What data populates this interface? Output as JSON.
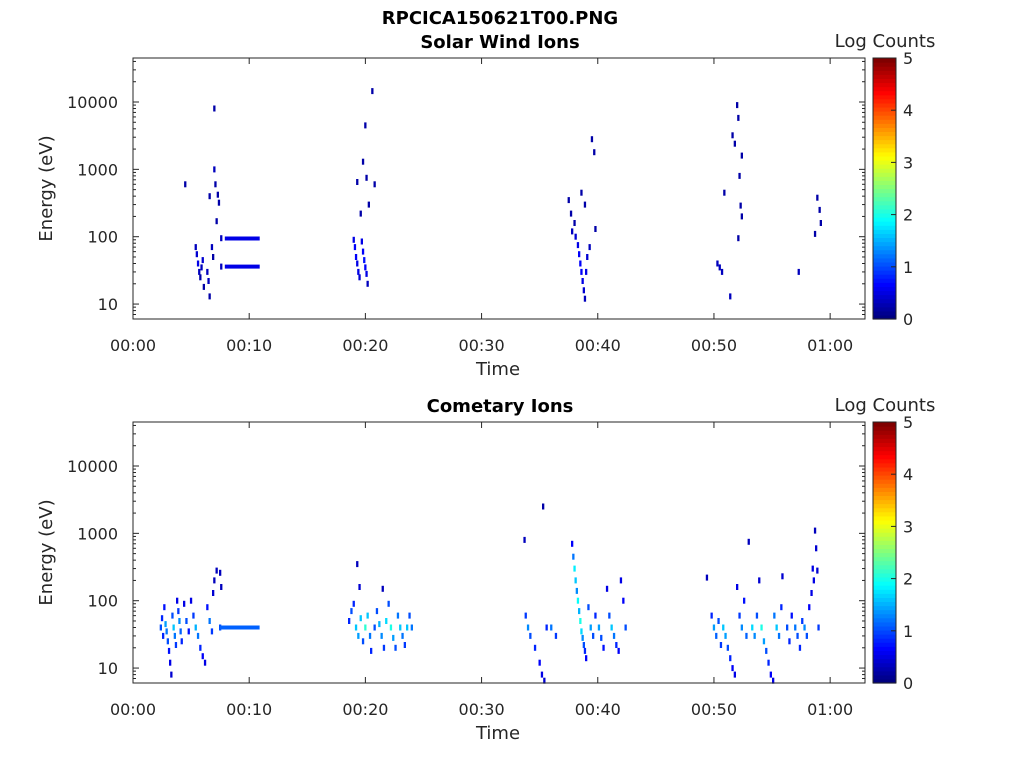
{
  "figure_title": "RPCICA150621T00.PNG",
  "chart_data": [
    {
      "type": "heatmap",
      "title": "Solar Wind Ions",
      "xlabel": "Time",
      "ylabel": "Energy (eV)",
      "x_unit": "minutes after 00:00",
      "xlim": [
        0,
        63
      ],
      "ylim": [
        6,
        45000
      ],
      "y_scale": "log",
      "xticks": [
        "00:00",
        "00:10",
        "00:20",
        "00:30",
        "00:40",
        "00:50",
        "01:00"
      ],
      "yticks": [
        "10",
        "100",
        "1000",
        "10000"
      ],
      "colorbar": {
        "label": "Log Counts",
        "ticks": [
          "0",
          "1",
          "2",
          "3",
          "4",
          "5"
        ],
        "range": [
          0,
          5
        ],
        "colormap": "jet"
      },
      "cells": [
        [
          4.5,
          600,
          0.2
        ],
        [
          5.4,
          70,
          0.3
        ],
        [
          5.5,
          55,
          0.4
        ],
        [
          5.6,
          40,
          0.5
        ],
        [
          5.7,
          30,
          0.3
        ],
        [
          5.8,
          25,
          0.2
        ],
        [
          5.9,
          35,
          0.3
        ],
        [
          6.0,
          45,
          0.4
        ],
        [
          6.1,
          18,
          0.2
        ],
        [
          6.4,
          30,
          0.3
        ],
        [
          6.5,
          22,
          0.3
        ],
        [
          6.6,
          13,
          0.2
        ],
        [
          6.6,
          400,
          0.2
        ],
        [
          6.8,
          70,
          0.3
        ],
        [
          6.9,
          50,
          0.2
        ],
        [
          7.0,
          1000,
          0.3
        ],
        [
          7.0,
          8000,
          0.2
        ],
        [
          7.1,
          600,
          0.2
        ],
        [
          7.2,
          170,
          0.2
        ],
        [
          7.3,
          420,
          0.2
        ],
        [
          7.4,
          320,
          0.2
        ],
        [
          7.6,
          95,
          0.3
        ],
        [
          7.6,
          36,
          0.3
        ],
        [
          19.0,
          90,
          0.5
        ],
        [
          19.1,
          70,
          0.6
        ],
        [
          19.2,
          50,
          0.6
        ],
        [
          19.3,
          40,
          0.5
        ],
        [
          19.4,
          30,
          0.5
        ],
        [
          19.5,
          25,
          0.4
        ],
        [
          19.7,
          85,
          0.5
        ],
        [
          19.8,
          60,
          0.6
        ],
        [
          19.9,
          45,
          0.7
        ],
        [
          20.0,
          35,
          0.6
        ],
        [
          20.1,
          28,
          0.5
        ],
        [
          20.2,
          20,
          0.3
        ],
        [
          19.3,
          650,
          0.2
        ],
        [
          19.6,
          220,
          0.2
        ],
        [
          19.8,
          1300,
          0.2
        ],
        [
          20.0,
          4500,
          0.2
        ],
        [
          20.1,
          750,
          0.2
        ],
        [
          20.3,
          300,
          0.2
        ],
        [
          20.6,
          14500,
          0.2
        ],
        [
          20.8,
          600,
          0.2
        ],
        [
          37.5,
          350,
          0.2
        ],
        [
          37.7,
          220,
          0.2
        ],
        [
          37.8,
          120,
          0.3
        ],
        [
          38.0,
          160,
          0.2
        ],
        [
          38.1,
          100,
          0.4
        ],
        [
          38.3,
          75,
          0.5
        ],
        [
          38.4,
          55,
          0.6
        ],
        [
          38.5,
          40,
          0.6
        ],
        [
          38.6,
          30,
          0.6
        ],
        [
          38.7,
          22,
          0.5
        ],
        [
          38.8,
          16,
          0.4
        ],
        [
          38.9,
          12,
          0.3
        ],
        [
          39.0,
          30,
          0.5
        ],
        [
          39.1,
          50,
          0.4
        ],
        [
          38.6,
          450,
          0.2
        ],
        [
          38.9,
          300,
          0.2
        ],
        [
          39.3,
          70,
          0.3
        ],
        [
          39.5,
          2800,
          0.2
        ],
        [
          39.7,
          1800,
          0.2
        ],
        [
          39.8,
          130,
          0.2
        ],
        [
          50.3,
          40,
          0.3
        ],
        [
          50.5,
          35,
          0.3
        ],
        [
          50.7,
          30,
          0.3
        ],
        [
          50.9,
          450,
          0.2
        ],
        [
          51.4,
          13,
          0.3
        ],
        [
          51.6,
          3200,
          0.2
        ],
        [
          51.8,
          2400,
          0.2
        ],
        [
          52.0,
          9000,
          0.2
        ],
        [
          52.1,
          5800,
          0.2
        ],
        [
          52.2,
          800,
          0.2
        ],
        [
          52.4,
          1600,
          0.2
        ],
        [
          52.1,
          95,
          0.2
        ],
        [
          52.3,
          290,
          0.2
        ],
        [
          52.4,
          200,
          0.2
        ],
        [
          57.3,
          30,
          0.3
        ],
        [
          58.7,
          110,
          0.2
        ],
        [
          58.9,
          380,
          0.2
        ],
        [
          59.1,
          250,
          0.2
        ],
        [
          59.2,
          160,
          0.2
        ]
      ],
      "bands": [
        [
          7.9,
          10.9,
          94,
          0.5
        ],
        [
          7.9,
          10.9,
          36,
          0.5
        ]
      ]
    },
    {
      "type": "heatmap",
      "title": "Cometary Ions",
      "xlabel": "Time",
      "ylabel": "Energy (eV)",
      "x_unit": "minutes after 00:00",
      "xlim": [
        0,
        63
      ],
      "ylim": [
        6,
        45000
      ],
      "y_scale": "log",
      "xticks": [
        "00:00",
        "00:10",
        "00:20",
        "00:30",
        "00:40",
        "00:50",
        "01:00"
      ],
      "yticks": [
        "10",
        "100",
        "1000",
        "10000"
      ],
      "colorbar": {
        "label": "Log Counts",
        "ticks": [
          "0",
          "1",
          "2",
          "3",
          "4",
          "5"
        ],
        "range": [
          0,
          5
        ],
        "colormap": "jet"
      },
      "cells": [
        [
          2.4,
          40,
          1.0
        ],
        [
          2.5,
          55,
          0.8
        ],
        [
          2.6,
          30,
          0.8
        ],
        [
          2.7,
          80,
          0.7
        ],
        [
          2.8,
          45,
          1.4
        ],
        [
          2.9,
          35,
          1.2
        ],
        [
          3.0,
          25,
          1.0
        ],
        [
          3.1,
          18,
          0.7
        ],
        [
          3.2,
          12,
          0.5
        ],
        [
          3.3,
          8,
          0.4
        ],
        [
          3.4,
          60,
          1.0
        ],
        [
          3.5,
          40,
          1.6
        ],
        [
          3.6,
          30,
          1.2
        ],
        [
          3.7,
          22,
          0.9
        ],
        [
          3.8,
          100,
          0.5
        ],
        [
          3.9,
          70,
          0.9
        ],
        [
          4.0,
          50,
          1.3
        ],
        [
          4.1,
          35,
          1.1
        ],
        [
          4.2,
          25,
          0.8
        ],
        [
          4.4,
          90,
          0.5
        ],
        [
          4.6,
          50,
          1.0
        ],
        [
          4.8,
          35,
          0.7
        ],
        [
          5.0,
          100,
          0.5
        ],
        [
          5.2,
          60,
          0.9
        ],
        [
          5.4,
          40,
          1.5
        ],
        [
          5.6,
          30,
          1.2
        ],
        [
          5.8,
          20,
          0.8
        ],
        [
          6.0,
          15,
          0.6
        ],
        [
          6.2,
          12,
          0.5
        ],
        [
          6.4,
          80,
          0.7
        ],
        [
          6.6,
          50,
          1.2
        ],
        [
          6.8,
          35,
          0.9
        ],
        [
          6.9,
          130,
          0.4
        ],
        [
          7.0,
          200,
          0.3
        ],
        [
          7.2,
          280,
          0.3
        ],
        [
          7.5,
          260,
          0.3
        ],
        [
          7.6,
          160,
          0.3
        ],
        [
          7.5,
          40,
          1.0
        ],
        [
          18.6,
          50,
          0.8
        ],
        [
          18.8,
          70,
          1.0
        ],
        [
          19.0,
          90,
          0.8
        ],
        [
          19.2,
          40,
          1.6
        ],
        [
          19.4,
          30,
          1.4
        ],
        [
          19.5,
          160,
          0.4
        ],
        [
          19.6,
          55,
          1.6
        ],
        [
          19.8,
          25,
          1.0
        ],
        [
          20.0,
          40,
          2.1
        ],
        [
          20.2,
          60,
          1.6
        ],
        [
          20.4,
          30,
          1.2
        ],
        [
          20.5,
          18,
          0.8
        ],
        [
          20.8,
          40,
          1.0
        ],
        [
          21.0,
          70,
          1.0
        ],
        [
          21.2,
          45,
          1.5
        ],
        [
          21.4,
          30,
          1.3
        ],
        [
          21.6,
          20,
          0.9
        ],
        [
          21.8,
          50,
          1.7
        ],
        [
          22.0,
          90,
          1.0
        ],
        [
          22.2,
          40,
          2.0
        ],
        [
          22.4,
          28,
          1.4
        ],
        [
          22.6,
          20,
          1.0
        ],
        [
          22.8,
          60,
          1.2
        ],
        [
          23.0,
          40,
          1.6
        ],
        [
          23.2,
          30,
          1.2
        ],
        [
          23.4,
          22,
          0.9
        ],
        [
          23.6,
          40,
          1.6
        ],
        [
          23.8,
          60,
          1.0
        ],
        [
          24.0,
          40,
          1.2
        ],
        [
          19.3,
          350,
          0.3
        ],
        [
          21.5,
          150,
          0.3
        ],
        [
          33.7,
          800,
          0.3
        ],
        [
          33.8,
          60,
          0.9
        ],
        [
          34.0,
          40,
          1.3
        ],
        [
          34.2,
          30,
          1.0
        ],
        [
          34.6,
          20,
          0.8
        ],
        [
          35.0,
          12,
          0.6
        ],
        [
          35.2,
          8,
          0.5
        ],
        [
          35.4,
          6.5,
          0.4
        ],
        [
          35.6,
          40,
          0.8
        ],
        [
          35.3,
          2500,
          0.2
        ],
        [
          36.0,
          40,
          1.2
        ],
        [
          36.4,
          30,
          0.9
        ],
        [
          37.8,
          700,
          0.6
        ],
        [
          37.9,
          450,
          1.2
        ],
        [
          38.0,
          300,
          1.8
        ],
        [
          38.1,
          200,
          1.6
        ],
        [
          38.2,
          140,
          1.3
        ],
        [
          38.3,
          100,
          1.9
        ],
        [
          38.4,
          70,
          1.5
        ],
        [
          38.5,
          50,
          2.0
        ],
        [
          38.6,
          35,
          1.7
        ],
        [
          38.7,
          28,
          1.3
        ],
        [
          38.8,
          22,
          1.0
        ],
        [
          38.9,
          18,
          0.8
        ],
        [
          39.0,
          14,
          0.6
        ],
        [
          39.2,
          80,
          1.0
        ],
        [
          39.4,
          40,
          1.4
        ],
        [
          39.6,
          30,
          1.0
        ],
        [
          39.8,
          60,
          0.8
        ],
        [
          40.1,
          40,
          1.4
        ],
        [
          40.3,
          28,
          1.0
        ],
        [
          40.5,
          20,
          0.7
        ],
        [
          40.8,
          150,
          0.5
        ],
        [
          41.0,
          60,
          1.0
        ],
        [
          41.2,
          40,
          1.6
        ],
        [
          41.4,
          30,
          1.2
        ],
        [
          41.6,
          22,
          0.8
        ],
        [
          41.8,
          18,
          0.6
        ],
        [
          42.0,
          200,
          0.5
        ],
        [
          42.2,
          100,
          0.6
        ],
        [
          42.4,
          40,
          1.0
        ],
        [
          49.4,
          220,
          0.3
        ],
        [
          49.8,
          60,
          0.8
        ],
        [
          50.0,
          40,
          1.4
        ],
        [
          50.2,
          30,
          1.1
        ],
        [
          50.4,
          50,
          1.0
        ],
        [
          50.6,
          22,
          0.9
        ],
        [
          50.8,
          40,
          1.6
        ],
        [
          51.0,
          30,
          1.4
        ],
        [
          51.2,
          20,
          1.0
        ],
        [
          51.4,
          14,
          0.8
        ],
        [
          51.6,
          10,
          0.6
        ],
        [
          51.8,
          8,
          0.5
        ],
        [
          52.0,
          160,
          0.5
        ],
        [
          52.2,
          60,
          0.9
        ],
        [
          52.4,
          40,
          1.3
        ],
        [
          52.6,
          100,
          0.7
        ],
        [
          52.8,
          30,
          1.1
        ],
        [
          53.0,
          750,
          0.3
        ],
        [
          53.3,
          40,
          1.7
        ],
        [
          53.5,
          30,
          1.3
        ],
        [
          53.7,
          60,
          1.0
        ],
        [
          53.9,
          200,
          0.4
        ],
        [
          54.1,
          40,
          2.0
        ],
        [
          54.3,
          25,
          1.4
        ],
        [
          54.5,
          18,
          1.0
        ],
        [
          54.7,
          12,
          0.8
        ],
        [
          54.9,
          8,
          0.6
        ],
        [
          55.1,
          6.5,
          0.5
        ],
        [
          55.2,
          60,
          1.2
        ],
        [
          55.4,
          40,
          1.6
        ],
        [
          55.6,
          30,
          1.2
        ],
        [
          55.8,
          80,
          0.8
        ],
        [
          55.9,
          230,
          0.4
        ],
        [
          56.3,
          40,
          1.0
        ],
        [
          56.5,
          25,
          0.8
        ],
        [
          56.7,
          60,
          0.7
        ],
        [
          57.0,
          40,
          1.2
        ],
        [
          57.2,
          30,
          1.0
        ],
        [
          57.4,
          20,
          0.8
        ],
        [
          57.6,
          50,
          0.9
        ],
        [
          57.8,
          40,
          1.3
        ],
        [
          58.0,
          30,
          1.0
        ],
        [
          58.2,
          80,
          0.6
        ],
        [
          58.4,
          130,
          0.5
        ],
        [
          58.6,
          200,
          0.5
        ],
        [
          58.7,
          1100,
          0.3
        ],
        [
          58.8,
          600,
          0.4
        ],
        [
          58.9,
          280,
          0.4
        ],
        [
          59.0,
          40,
          0.9
        ],
        [
          58.5,
          300,
          0.5
        ]
      ],
      "bands": [
        [
          7.5,
          10.9,
          40,
          1.1
        ]
      ]
    }
  ]
}
